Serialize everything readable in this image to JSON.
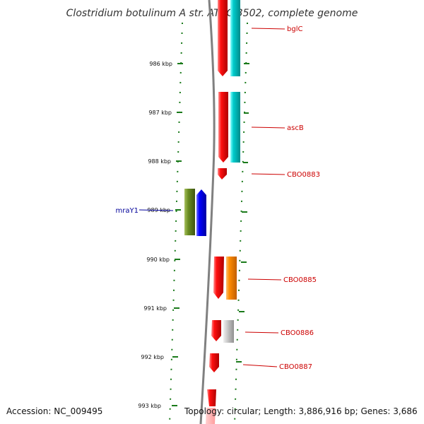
{
  "title": "Clostridium botulinum A str. ATCC 3502, complete genome",
  "footer": {
    "accession": "Accession: NC_009495",
    "topology": "Topology: circular; Length: 3,886,916 bp; Genes: 3,686"
  },
  "colors": {
    "background": "#ffffff",
    "backbone": "#808080",
    "tick": "#1a7a1a",
    "forward_gene": "#ff0000",
    "cyan_feature": "#00c8c8",
    "green_feature": "#6b8e23",
    "blue_feature": "#0000ff",
    "orange_feature": "#ff8c00",
    "gray_feature": "#c0c0c0",
    "red_label": "#cc0000",
    "blue_label": "#000099"
  },
  "ticks": [
    "986 kbp",
    "987 kbp",
    "988 kbp",
    "989 kbp",
    "990 kbp",
    "991 kbp",
    "992 kbp",
    "993 kbp"
  ],
  "gene_labels": [
    {
      "text": "bglC",
      "color": "red"
    },
    {
      "text": "ascB",
      "color": "red"
    },
    {
      "text": "CBO0883",
      "color": "red"
    },
    {
      "text": "mraY1",
      "color": "blue"
    },
    {
      "text": "CBO0885",
      "color": "red"
    },
    {
      "text": "CBO0886",
      "color": "red"
    },
    {
      "text": "CBO0887",
      "color": "red"
    }
  ]
}
